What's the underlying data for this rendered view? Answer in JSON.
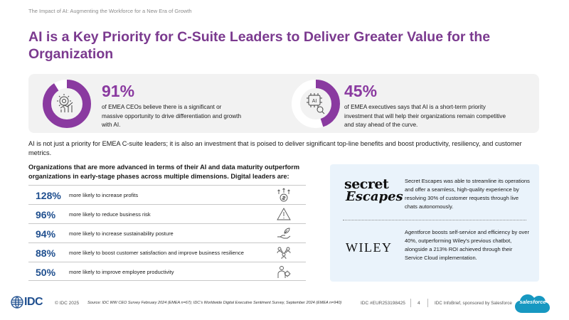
{
  "header": {
    "kicker": "The Impact of AI: Augmenting the Workforce for a New Era of Growth",
    "title": "AI is a Key Priority for C-Suite Leaders to Deliver Greater Value for the Organization"
  },
  "stats": [
    {
      "value": "91%",
      "fraction": 0.91,
      "description": "of EMEA CEOs believe there is a significant or massive opportunity to drive differentiation and growth with AI.",
      "icon": "gear-growth-icon"
    },
    {
      "value": "45%",
      "fraction": 0.45,
      "description": "of EMEA executives says that AI is a short-term priority investment that will help their organizations remain competitive and stay ahead of the curve.",
      "icon": "ai-chip-icon",
      "icon_label": "AI"
    }
  ],
  "intro": "AI is not just a priority for EMEA C-suite leaders; it is also an investment that is poised to deliver significant top-line benefits and boost productivity, resiliency, and customer metrics.",
  "list_heading": "Organizations that are more advanced in terms of their AI and data maturity outperform organizations in early-stage phases across multiple dimensions. Digital leaders are:",
  "metrics": [
    {
      "value": "128%",
      "text": "more likely to increase profits",
      "icon": "money-growth-icon"
    },
    {
      "value": "96%",
      "text": "more likely to reduce business risk",
      "icon": "warning-icon"
    },
    {
      "value": "94%",
      "text": "more likely to increase sustainability posture",
      "icon": "hand-leaf-icon"
    },
    {
      "value": "88%",
      "text": "more likely to boost customer satisfaction and improve business resilience",
      "icon": "people-network-icon"
    },
    {
      "value": "50%",
      "text": "more likely to improve employee productivity",
      "icon": "employee-gear-icon"
    }
  ],
  "cases": [
    {
      "logo_line1": "secret",
      "logo_line2": "Escapes",
      "text": "Secret Escapes was able to streamline its operations and offer a seamless, high-quality experience by resolving 30% of customer requests through live chats autonomously."
    },
    {
      "logo": "WILEY",
      "text": "Agentforce boosts self-service and efficiency by over 40%, outperforming Wiley's previous chatbot, alongside a 213% ROI achieved through their Service Cloud implementation."
    }
  ],
  "footer": {
    "idc": "IDC",
    "copyright": "© IDC 2025",
    "source": "Source: IDC WW CEO Survey February 2024 (EMEA n=67); IDC's Worldwide Digital Executive Sentiment Survey, September 2024 (EMEA n=940)",
    "doc_id": "IDC #EUR253198425",
    "page": "4",
    "sponsor": "IDC InfoBrief, sponsored by Salesforce",
    "salesforce": "salesforce"
  },
  "colors": {
    "title": "#7b3a8f",
    "ring": "#8a3aa0",
    "metric_value": "#1f4f8f",
    "case_panel": "#eaf3fb"
  }
}
